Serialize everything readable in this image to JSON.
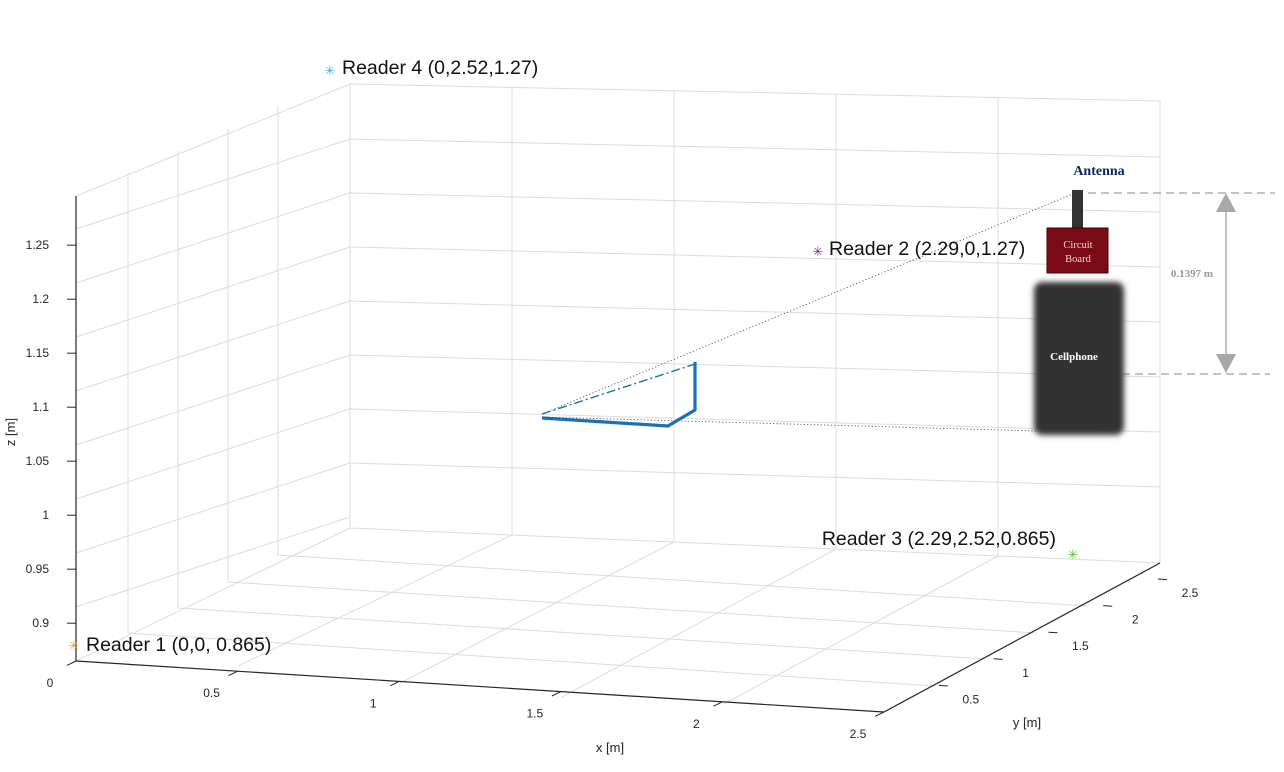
{
  "chart_data": {
    "type": "scatter",
    "title": "",
    "xlabel": "x [m]",
    "ylabel": "y [m]",
    "zlabel": "z [m]",
    "xlim": [
      0,
      2.5
    ],
    "ylim": [
      0,
      2.5
    ],
    "zlim": [
      0.865,
      1.27
    ],
    "x_ticks": [
      "0",
      "0.5",
      "1",
      "1.5",
      "2",
      "2.5"
    ],
    "y_ticks": [
      "0.5",
      "1",
      "1.5",
      "2",
      "2.5"
    ],
    "z_ticks": [
      "0.9",
      "0.95",
      "1",
      "1.05",
      "1.1",
      "1.15",
      "1.2",
      "1.25"
    ],
    "grid": true,
    "readers": [
      {
        "label": "Reader 1 (0,0, 0.865)",
        "x": 0,
        "y": 0,
        "z": 0.865,
        "color": "#f5a623"
      },
      {
        "label": "Reader 2 (2.29,0,1.27)",
        "x": 2.29,
        "y": 0,
        "z": 1.27,
        "color": "#7b2d7f"
      },
      {
        "label": "Reader 3 (2.29,2.52,0.865)",
        "x": 2.29,
        "y": 2.52,
        "z": 0.865,
        "color": "#5cb82e"
      },
      {
        "label": "Reader 4 (0,2.52,1.27)",
        "x": 0,
        "y": 2.52,
        "z": 1.27,
        "color": "#2fb5e0"
      }
    ],
    "series_color": "#1a6fba"
  },
  "device": {
    "antenna_label": "Antenna",
    "circuit_board_label_1": "Circuit",
    "circuit_board_label_2": "Board",
    "cellphone_label": "Cellphone",
    "dimension_label": "0.1397 m",
    "colors": {
      "antenna": "#333333",
      "circuit_board": "#7a0a14",
      "cellphone": "#333333",
      "antenna_text": "#10235e",
      "arrow": "#a8a8a8"
    }
  }
}
